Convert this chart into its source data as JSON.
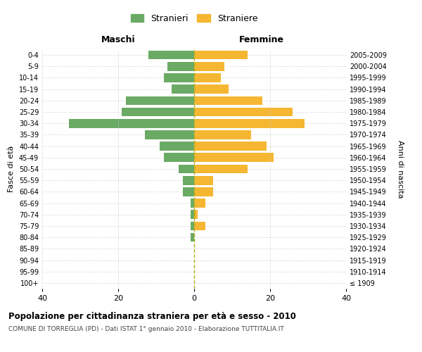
{
  "age_groups": [
    "100+",
    "95-99",
    "90-94",
    "85-89",
    "80-84",
    "75-79",
    "70-74",
    "65-69",
    "60-64",
    "55-59",
    "50-54",
    "45-49",
    "40-44",
    "35-39",
    "30-34",
    "25-29",
    "20-24",
    "15-19",
    "10-14",
    "5-9",
    "0-4"
  ],
  "birth_years": [
    "≤ 1909",
    "1910-1914",
    "1915-1919",
    "1920-1924",
    "1925-1929",
    "1930-1934",
    "1935-1939",
    "1940-1944",
    "1945-1949",
    "1950-1954",
    "1955-1959",
    "1960-1964",
    "1965-1969",
    "1970-1974",
    "1975-1979",
    "1980-1984",
    "1985-1989",
    "1990-1994",
    "1995-1999",
    "2000-2004",
    "2005-2009"
  ],
  "maschi": [
    0,
    0,
    0,
    0,
    1,
    1,
    1,
    1,
    3,
    3,
    4,
    8,
    9,
    13,
    33,
    19,
    18,
    6,
    8,
    7,
    12
  ],
  "femmine": [
    0,
    0,
    0,
    0,
    0,
    3,
    1,
    3,
    5,
    5,
    14,
    21,
    19,
    15,
    29,
    26,
    18,
    9,
    7,
    8,
    14
  ],
  "color_maschi": "#6aaa64",
  "color_femmine": "#f5b731",
  "title": "Popolazione per cittadinanza straniera per età e sesso - 2010",
  "subtitle": "COMUNE DI TORREGLIA (PD) - Dati ISTAT 1° gennaio 2010 - Elaborazione TUTTITALIA.IT",
  "xlabel_left": "Maschi",
  "xlabel_right": "Femmine",
  "ylabel_left": "Fasce di età",
  "ylabel_right": "Anni di nascita",
  "legend_maschi": "Stranieri",
  "legend_femmine": "Straniere",
  "xlim": 40,
  "background_color": "#ffffff",
  "grid_color": "#cccccc"
}
